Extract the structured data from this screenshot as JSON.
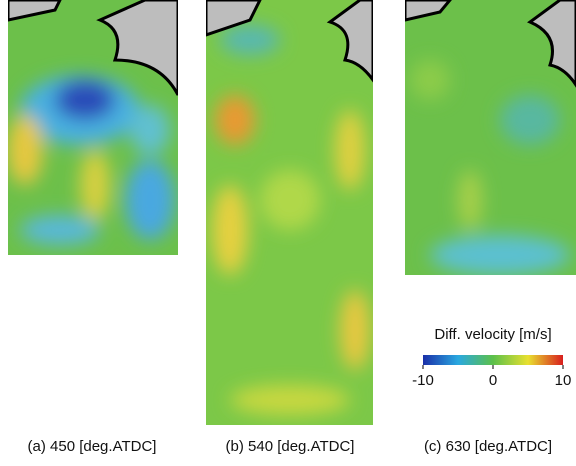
{
  "panels": [
    {
      "caption": "(a) 450 [deg.ATDC]"
    },
    {
      "caption": "(b) 540 [deg.ATDC]"
    },
    {
      "caption": "(c) 630 [deg.ATDC]"
    }
  ],
  "colorbar": {
    "label": "Diff. velocity [m/s]",
    "lim": [
      -10,
      10
    ],
    "ticks": [
      -10,
      0,
      10
    ]
  }
}
